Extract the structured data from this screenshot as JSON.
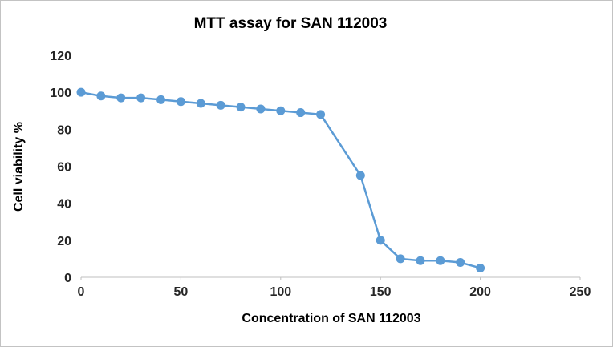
{
  "chart": {
    "title": "MTT assay for SAN 112003",
    "xlabel": "Concentration of SAN 112003",
    "ylabel": "Cell viability %"
  },
  "chart_data": {
    "type": "line",
    "title": "MTT assay for SAN 112003",
    "xlabel": "Concentration of SAN 112003",
    "ylabel": "Cell viability %",
    "x": [
      0,
      10,
      20,
      30,
      40,
      50,
      60,
      70,
      80,
      90,
      100,
      110,
      120,
      140,
      150,
      160,
      170,
      180,
      190,
      200
    ],
    "y": [
      100,
      98,
      97,
      97,
      96,
      95,
      94,
      93,
      92,
      91,
      90,
      89,
      88,
      55,
      20,
      10,
      9,
      9,
      8,
      5
    ],
    "series": [
      {
        "name": "Cell viability %",
        "values": [
          100,
          98,
          97,
          97,
          96,
          95,
          94,
          93,
          92,
          91,
          90,
          89,
          88,
          55,
          20,
          10,
          9,
          9,
          8,
          5
        ]
      }
    ],
    "xlim": [
      0,
      250
    ],
    "ylim": [
      0,
      120
    ],
    "x_ticks": [
      0,
      50,
      100,
      150,
      200,
      250
    ],
    "y_ticks": [
      0,
      20,
      40,
      60,
      80,
      100,
      120
    ],
    "grid": false,
    "legend_position": "none",
    "line_color": "#5b9bd5",
    "marker": "circle",
    "axis_color": "#bfbfbf"
  }
}
